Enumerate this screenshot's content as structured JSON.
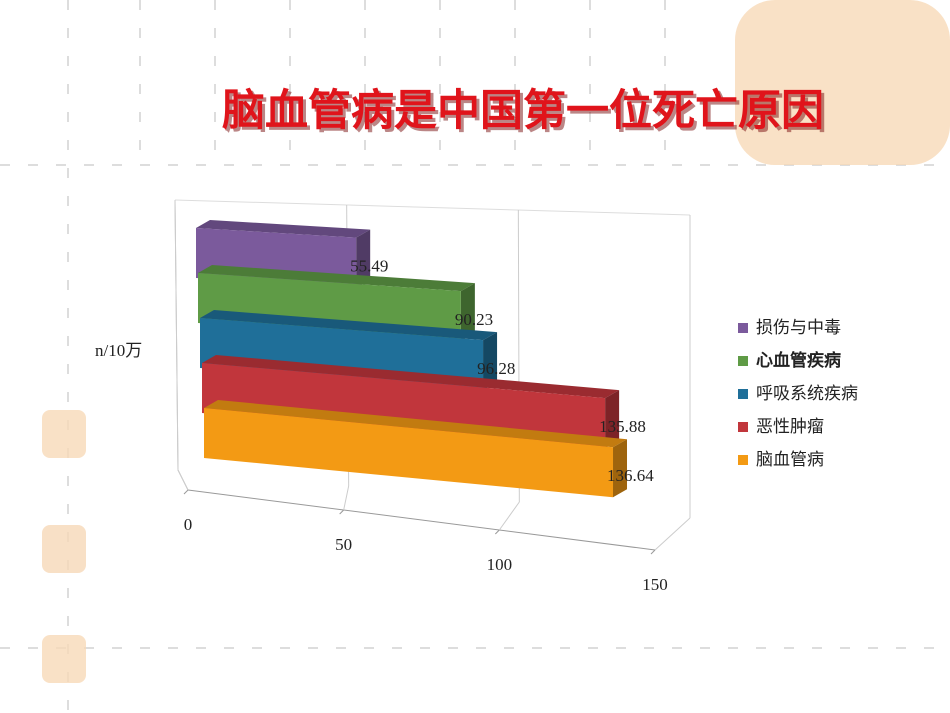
{
  "chart_data": {
    "type": "bar3d",
    "title": "脑血管病是中国第一位死亡原因",
    "y_label": "n/10万",
    "series": [
      {
        "name": "损伤与中毒",
        "color": "#7b5a9c",
        "values": [
          55.49
        ]
      },
      {
        "name": "心血管疾病",
        "color": "#5f9b46",
        "values": [
          90.23
        ]
      },
      {
        "name": "呼吸系统疾病",
        "color": "#1f6f99",
        "values": [
          96.28
        ]
      },
      {
        "name": "恶性肿瘤",
        "color": "#c1363c",
        "values": [
          135.88
        ]
      },
      {
        "name": "脑血管病",
        "color": "#f39a14",
        "values": [
          136.64
        ]
      }
    ],
    "xlim": [
      0,
      150
    ],
    "xticks": [
      0,
      50,
      100,
      150
    ],
    "grid": true,
    "legend": "right"
  }
}
